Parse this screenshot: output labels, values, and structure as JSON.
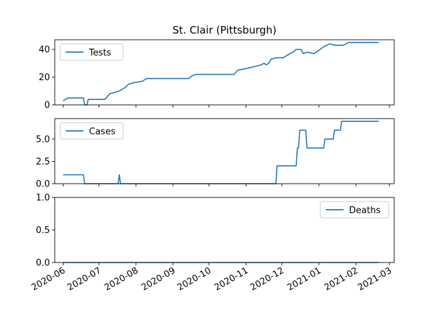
{
  "chart_data": {
    "type": "line",
    "title": "St. Clair (Pittsburgh)",
    "x_axis": {
      "type": "date",
      "range": [
        "2020-05-25",
        "2021-03-05"
      ],
      "ticks": [
        "2020-06-01",
        "2020-07-01",
        "2020-08-01",
        "2020-09-01",
        "2020-10-01",
        "2020-11-01",
        "2020-12-01",
        "2021-01-01",
        "2021-02-01",
        "2021-03-01"
      ],
      "tick_labels": [
        "2020-06",
        "2020-07",
        "2020-08",
        "2020-09",
        "2020-10",
        "2020-11",
        "2020-12",
        "2021-01",
        "2021-02",
        "2021-03"
      ]
    },
    "panels": [
      {
        "series_name": "Tests",
        "legend_position": "upper-left",
        "ylim": [
          0,
          47
        ],
        "yticks": [
          0,
          20,
          40
        ],
        "ytick_labels": [
          "0",
          "20",
          "40"
        ],
        "points": [
          [
            "2020-06-01",
            3
          ],
          [
            "2020-06-03",
            4
          ],
          [
            "2020-06-05",
            5
          ],
          [
            "2020-06-18",
            5
          ],
          [
            "2020-06-19",
            0
          ],
          [
            "2020-06-21",
            0
          ],
          [
            "2020-06-22",
            4
          ],
          [
            "2020-07-06",
            4
          ],
          [
            "2020-07-08",
            6
          ],
          [
            "2020-07-10",
            8
          ],
          [
            "2020-07-14",
            9
          ],
          [
            "2020-07-18",
            10
          ],
          [
            "2020-07-22",
            12
          ],
          [
            "2020-07-26",
            15
          ],
          [
            "2020-07-30",
            16
          ],
          [
            "2020-08-06",
            17
          ],
          [
            "2020-08-10",
            19
          ],
          [
            "2020-08-25",
            19
          ],
          [
            "2020-09-14",
            19
          ],
          [
            "2020-09-17",
            21
          ],
          [
            "2020-09-20",
            22
          ],
          [
            "2020-10-15",
            22
          ],
          [
            "2020-10-22",
            22
          ],
          [
            "2020-10-25",
            25
          ],
          [
            "2020-10-31",
            26
          ],
          [
            "2020-11-05",
            27
          ],
          [
            "2020-11-10",
            28
          ],
          [
            "2020-11-14",
            29
          ],
          [
            "2020-11-16",
            30
          ],
          [
            "2020-11-18",
            29
          ],
          [
            "2020-11-20",
            30
          ],
          [
            "2020-11-22",
            33
          ],
          [
            "2020-11-26",
            34
          ],
          [
            "2020-12-02",
            34
          ],
          [
            "2020-12-06",
            36
          ],
          [
            "2020-12-10",
            38
          ],
          [
            "2020-12-13",
            40
          ],
          [
            "2020-12-17",
            40
          ],
          [
            "2020-12-19",
            37
          ],
          [
            "2020-12-22",
            38
          ],
          [
            "2020-12-28",
            37
          ],
          [
            "2021-01-02",
            40
          ],
          [
            "2021-01-05",
            42
          ],
          [
            "2021-01-10",
            44
          ],
          [
            "2021-01-15",
            43
          ],
          [
            "2021-01-21",
            43
          ],
          [
            "2021-01-26",
            45
          ],
          [
            "2021-02-15",
            45
          ],
          [
            "2021-02-20",
            45
          ]
        ]
      },
      {
        "series_name": "Cases",
        "legend_position": "upper-left",
        "ylim": [
          0,
          7.3
        ],
        "yticks": [
          0,
          2.5,
          5.0
        ],
        "ytick_labels": [
          "0.0",
          "2.5",
          "5.0"
        ],
        "points": [
          [
            "2020-06-01",
            1
          ],
          [
            "2020-06-18",
            1
          ],
          [
            "2020-06-19",
            0
          ],
          [
            "2020-07-17",
            0
          ],
          [
            "2020-07-18",
            1
          ],
          [
            "2020-07-19",
            0
          ],
          [
            "2020-11-26",
            0
          ],
          [
            "2020-11-27",
            2
          ],
          [
            "2020-12-13",
            2
          ],
          [
            "2020-12-14",
            4
          ],
          [
            "2020-12-15",
            4
          ],
          [
            "2020-12-16",
            6
          ],
          [
            "2020-12-21",
            6
          ],
          [
            "2020-12-22",
            4
          ],
          [
            "2021-01-05",
            4
          ],
          [
            "2021-01-06",
            5
          ],
          [
            "2021-01-13",
            5
          ],
          [
            "2021-01-14",
            6
          ],
          [
            "2021-01-19",
            6
          ],
          [
            "2021-01-20",
            7
          ],
          [
            "2021-02-20",
            7
          ]
        ]
      },
      {
        "series_name": "Deaths",
        "legend_position": "upper-right",
        "ylim": [
          0,
          1.0
        ],
        "yticks": [
          0,
          0.5,
          1.0
        ],
        "ytick_labels": [
          "0.0",
          "0.5",
          "1.0"
        ],
        "points": [
          [
            "2020-06-01",
            0
          ],
          [
            "2021-02-20",
            0
          ]
        ]
      }
    ]
  },
  "colors": {
    "series": "#1f77b4",
    "axes": "#000000",
    "legend_border": "#cccccc"
  }
}
